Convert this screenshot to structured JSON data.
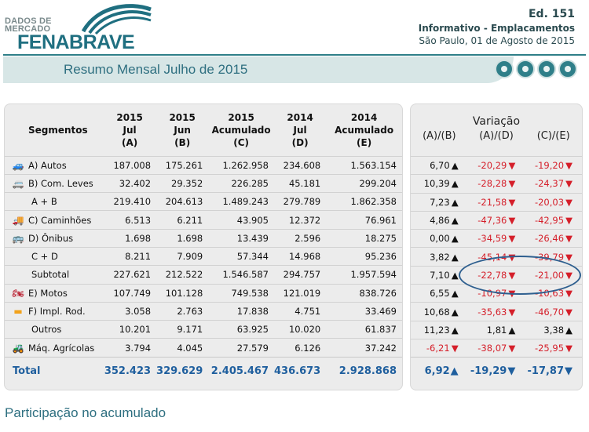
{
  "header": {
    "logo_small": "DADOS DE\nMERCADO",
    "logo_brand": "FENABRAVE",
    "edition": "Ed. 151",
    "subtitle": "Informativo - Emplacamentos",
    "date": "São Paulo, 01 de Agosto de 2015"
  },
  "banner": {
    "title": "Resumo Mensal Julho de 2015"
  },
  "table": {
    "headers": {
      "segment": "Segmentos",
      "col_a": "2015\nJul\n(A)",
      "col_b": "2015\nJun\n(B)",
      "col_c": "2015\nAcumulado\n(C)",
      "col_d": "2014\nJul\n(D)",
      "col_e": "2014\nAcumulado\n(E)"
    },
    "rows": [
      {
        "label": "A) Autos",
        "icon": "car-icon",
        "a": "187.008",
        "b": "175.261",
        "c": "1.262.958",
        "d": "234.608",
        "e": "1.563.154"
      },
      {
        "label": "B) Com. Leves",
        "icon": "van-icon",
        "a": "32.402",
        "b": "29.352",
        "c": "226.285",
        "d": "45.181",
        "e": "299.204"
      },
      {
        "label": "A + B",
        "icon": "",
        "a": "219.410",
        "b": "204.613",
        "c": "1.489.243",
        "d": "279.789",
        "e": "1.862.358"
      },
      {
        "label": "C) Caminhões",
        "icon": "truck-icon",
        "a": "6.513",
        "b": "6.211",
        "c": "43.905",
        "d": "12.372",
        "e": "76.961"
      },
      {
        "label": "D) Ônibus",
        "icon": "bus-icon",
        "a": "1.698",
        "b": "1.698",
        "c": "13.439",
        "d": "2.596",
        "e": "18.275"
      },
      {
        "label": "C + D",
        "icon": "",
        "a": "8.211",
        "b": "7.909",
        "c": "57.344",
        "d": "14.968",
        "e": "95.236"
      },
      {
        "label": "Subtotal",
        "icon": "",
        "a": "227.621",
        "b": "212.522",
        "c": "1.546.587",
        "d": "294.757",
        "e": "1.957.594"
      },
      {
        "label": "E) Motos",
        "icon": "motorcycle-icon",
        "a": "107.749",
        "b": "101.128",
        "c": "749.538",
        "d": "121.019",
        "e": "838.726"
      },
      {
        "label": "F) Impl. Rod.",
        "icon": "trailer-icon",
        "a": "3.058",
        "b": "2.763",
        "c": "17.838",
        "d": "4.751",
        "e": "33.469"
      },
      {
        "label": "Outros",
        "icon": "",
        "a": "10.201",
        "b": "9.171",
        "c": "63.925",
        "d": "10.020",
        "e": "61.837"
      },
      {
        "label": "Máq. Agrícolas",
        "icon": "tractor-icon",
        "a": "3.794",
        "b": "4.045",
        "c": "27.579",
        "d": "6.126",
        "e": "37.242"
      }
    ],
    "total": {
      "label": "Total",
      "a": "352.423",
      "b": "329.629",
      "c": "2.405.467",
      "d": "436.673",
      "e": "2.928.868"
    }
  },
  "variation": {
    "title": "Variação",
    "headers": [
      "(A)/(B)",
      "(A)/(D)",
      "(C)/(E)"
    ],
    "rows": [
      [
        "6,70",
        "-20,29",
        "-19,20"
      ],
      [
        "10,39",
        "-28,28",
        "-24,37"
      ],
      [
        "7,23",
        "-21,58",
        "-20,03"
      ],
      [
        "4,86",
        "-47,36",
        "-42,95"
      ],
      [
        "0,00",
        "-34,59",
        "-26,46"
      ],
      [
        "3,82",
        "-45,14",
        "-39,79"
      ],
      [
        "7,10",
        "-22,78",
        "-21,00"
      ],
      [
        "6,55",
        "-10,97",
        "-10,63"
      ],
      [
        "10,68",
        "-35,63",
        "-46,70"
      ],
      [
        "11,23",
        "1,81",
        "3,38"
      ],
      [
        "-6,21",
        "-38,07",
        "-25,95"
      ]
    ],
    "total": [
      "6,92",
      "-19,29",
      "-17,87"
    ]
  },
  "footer": {
    "section_title": "Participação no acumulado"
  },
  "colors": {
    "brand": "#1f6f80",
    "positive": "#2b5cab",
    "negative": "#d51f2a"
  }
}
